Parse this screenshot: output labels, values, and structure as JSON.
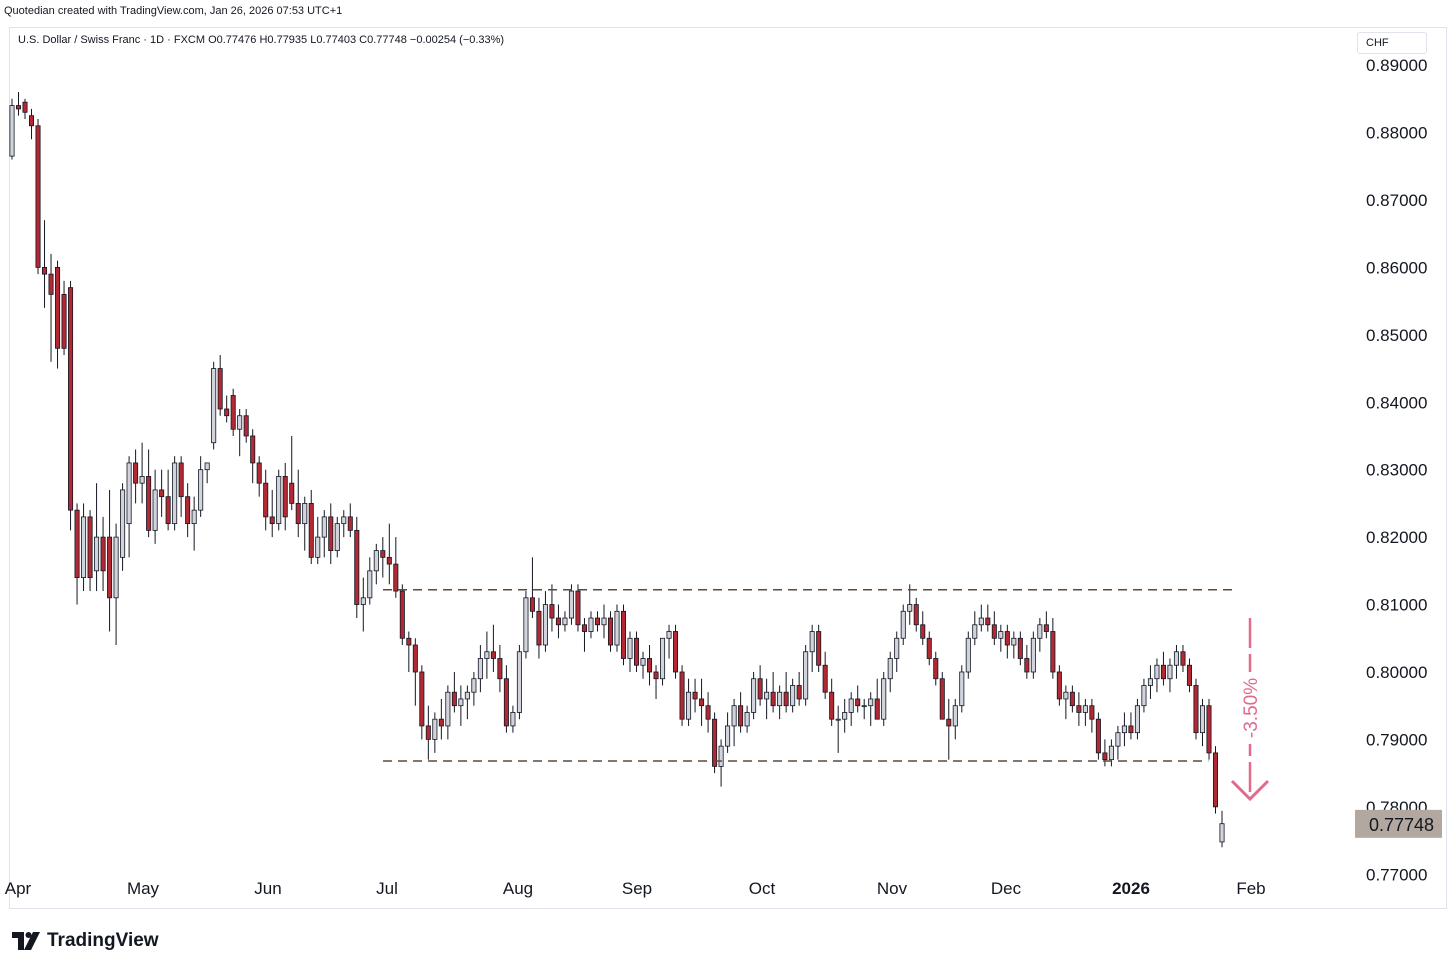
{
  "header": {
    "credit": "Quotedian created with TradingView.com, Jan 26, 2026 07:53 UTC+1",
    "legend": "U.S. Dollar / Swiss Franc · 1D · FXCM  O0.77476  H0.77935  L0.77403  C0.77748  −0.00254 (−0.33%)",
    "currency": "CHF"
  },
  "footer": {
    "brand": "TradingView",
    "logo_icon": "tradingview-logo-icon"
  },
  "colors": {
    "up": "#d1d4dc",
    "down": "#b22833",
    "outline": "#131722",
    "annotation": "#e06b8b",
    "price_tag": "#b2a89f"
  },
  "chart_data": {
    "type": "candlestick",
    "ylim": [
      0.765,
      0.8955
    ],
    "ytick_labels": [
      "0.89000",
      "0.88000",
      "0.87000",
      "0.86000",
      "0.85000",
      "0.84000",
      "0.83000",
      "0.82000",
      "0.81000",
      "0.80000",
      "0.79000",
      "0.78000",
      "0.77000"
    ],
    "ytick_values": [
      0.89,
      0.88,
      0.87,
      0.86,
      0.85,
      0.84,
      0.83,
      0.82,
      0.81,
      0.8,
      0.79,
      0.78,
      0.77
    ],
    "xtick_labels": [
      "Apr",
      "May",
      "Jun",
      "Jul",
      "Aug",
      "Sep",
      "Oct",
      "Nov",
      "Dec",
      "2026",
      "Feb"
    ],
    "last_price": "0.77748",
    "last_value": 0.77748,
    "annotation": "-3.50%",
    "range_lines": [
      {
        "from": "2025-06-30",
        "to": "2026-01-28",
        "value": 0.8122
      },
      {
        "from": "2025-06-30",
        "to": "2026-01-21",
        "value": 0.7868
      }
    ],
    "candles": [
      [
        0.8765,
        0.885,
        0.876,
        0.884
      ],
      [
        0.884,
        0.886,
        0.8825,
        0.8835
      ],
      [
        0.8845,
        0.885,
        0.882,
        0.883
      ],
      [
        0.8825,
        0.8835,
        0.879,
        0.881
      ],
      [
        0.881,
        0.882,
        0.859,
        0.86
      ],
      [
        0.86,
        0.867,
        0.854,
        0.859
      ],
      [
        0.859,
        0.862,
        0.846,
        0.856
      ],
      [
        0.86,
        0.861,
        0.845,
        0.848
      ],
      [
        0.856,
        0.858,
        0.847,
        0.848
      ],
      [
        0.857,
        0.858,
        0.821,
        0.824
      ],
      [
        0.824,
        0.825,
        0.81,
        0.814
      ],
      [
        0.814,
        0.825,
        0.812,
        0.823
      ],
      [
        0.823,
        0.824,
        0.812,
        0.814
      ],
      [
        0.815,
        0.828,
        0.812,
        0.82
      ],
      [
        0.82,
        0.823,
        0.812,
        0.815
      ],
      [
        0.82,
        0.827,
        0.806,
        0.811
      ],
      [
        0.811,
        0.822,
        0.804,
        0.82
      ],
      [
        0.817,
        0.828,
        0.815,
        0.827
      ],
      [
        0.822,
        0.832,
        0.817,
        0.831
      ],
      [
        0.831,
        0.833,
        0.825,
        0.828
      ],
      [
        0.828,
        0.834,
        0.825,
        0.829
      ],
      [
        0.829,
        0.833,
        0.82,
        0.821
      ],
      [
        0.821,
        0.83,
        0.819,
        0.827
      ],
      [
        0.827,
        0.83,
        0.823,
        0.826
      ],
      [
        0.826,
        0.83,
        0.821,
        0.822
      ],
      [
        0.822,
        0.832,
        0.821,
        0.831
      ],
      [
        0.831,
        0.832,
        0.823,
        0.826
      ],
      [
        0.826,
        0.828,
        0.82,
        0.822
      ],
      [
        0.822,
        0.826,
        0.818,
        0.824
      ],
      [
        0.824,
        0.832,
        0.823,
        0.83
      ],
      [
        0.83,
        0.831,
        0.828,
        0.831
      ],
      [
        0.834,
        0.846,
        0.833,
        0.845
      ],
      [
        0.845,
        0.847,
        0.838,
        0.839
      ],
      [
        0.839,
        0.841,
        0.837,
        0.838
      ],
      [
        0.841,
        0.842,
        0.835,
        0.836
      ],
      [
        0.836,
        0.839,
        0.832,
        0.838
      ],
      [
        0.838,
        0.839,
        0.834,
        0.835
      ],
      [
        0.835,
        0.836,
        0.828,
        0.831
      ],
      [
        0.831,
        0.832,
        0.826,
        0.828
      ],
      [
        0.828,
        0.83,
        0.821,
        0.823
      ],
      [
        0.823,
        0.827,
        0.82,
        0.822
      ],
      [
        0.822,
        0.83,
        0.821,
        0.829
      ],
      [
        0.829,
        0.831,
        0.821,
        0.823
      ],
      [
        0.828,
        0.835,
        0.824,
        0.825
      ],
      [
        0.825,
        0.83,
        0.82,
        0.822
      ],
      [
        0.822,
        0.826,
        0.818,
        0.825
      ],
      [
        0.825,
        0.827,
        0.816,
        0.817
      ],
      [
        0.817,
        0.823,
        0.816,
        0.82
      ],
      [
        0.82,
        0.824,
        0.817,
        0.823
      ],
      [
        0.823,
        0.825,
        0.816,
        0.818
      ],
      [
        0.818,
        0.823,
        0.817,
        0.822
      ],
      [
        0.822,
        0.824,
        0.82,
        0.823
      ],
      [
        0.823,
        0.825,
        0.82,
        0.821
      ],
      [
        0.821,
        0.823,
        0.808,
        0.81
      ],
      [
        0.81,
        0.814,
        0.806,
        0.811
      ],
      [
        0.811,
        0.817,
        0.81,
        0.815
      ],
      [
        0.815,
        0.819,
        0.813,
        0.818
      ],
      [
        0.818,
        0.82,
        0.814,
        0.817
      ],
      [
        0.817,
        0.822,
        0.813,
        0.816
      ],
      [
        0.816,
        0.82,
        0.811,
        0.812
      ],
      [
        0.812,
        0.813,
        0.804,
        0.805
      ],
      [
        0.805,
        0.806,
        0.8,
        0.804
      ],
      [
        0.804,
        0.805,
        0.795,
        0.8
      ],
      [
        0.8,
        0.801,
        0.79,
        0.792
      ],
      [
        0.792,
        0.795,
        0.787,
        0.79
      ],
      [
        0.79,
        0.794,
        0.788,
        0.793
      ],
      [
        0.793,
        0.796,
        0.79,
        0.792
      ],
      [
        0.792,
        0.798,
        0.79,
        0.797
      ],
      [
        0.797,
        0.8,
        0.794,
        0.795
      ],
      [
        0.795,
        0.798,
        0.792,
        0.796
      ],
      [
        0.796,
        0.798,
        0.793,
        0.797
      ],
      [
        0.797,
        0.8,
        0.795,
        0.799
      ],
      [
        0.799,
        0.804,
        0.797,
        0.802
      ],
      [
        0.802,
        0.806,
        0.799,
        0.803
      ],
      [
        0.803,
        0.807,
        0.8,
        0.802
      ],
      [
        0.802,
        0.804,
        0.797,
        0.799
      ],
      [
        0.799,
        0.801,
        0.791,
        0.792
      ],
      [
        0.792,
        0.795,
        0.791,
        0.794
      ],
      [
        0.794,
        0.804,
        0.793,
        0.803
      ],
      [
        0.803,
        0.812,
        0.802,
        0.811
      ],
      [
        0.811,
        0.817,
        0.808,
        0.809
      ],
      [
        0.809,
        0.811,
        0.802,
        0.804
      ],
      [
        0.804,
        0.812,
        0.803,
        0.81
      ],
      [
        0.81,
        0.813,
        0.806,
        0.808
      ],
      [
        0.808,
        0.81,
        0.805,
        0.807
      ],
      [
        0.807,
        0.809,
        0.806,
        0.808
      ],
      [
        0.808,
        0.813,
        0.807,
        0.812
      ],
      [
        0.812,
        0.813,
        0.806,
        0.807
      ],
      [
        0.807,
        0.808,
        0.803,
        0.806
      ],
      [
        0.806,
        0.809,
        0.805,
        0.808
      ],
      [
        0.808,
        0.809,
        0.806,
        0.807
      ],
      [
        0.807,
        0.81,
        0.805,
        0.808
      ],
      [
        0.808,
        0.809,
        0.803,
        0.804
      ],
      [
        0.804,
        0.81,
        0.803,
        0.809
      ],
      [
        0.809,
        0.81,
        0.801,
        0.802
      ],
      [
        0.802,
        0.806,
        0.8,
        0.805
      ],
      [
        0.805,
        0.806,
        0.8,
        0.801
      ],
      [
        0.801,
        0.803,
        0.799,
        0.802
      ],
      [
        0.802,
        0.804,
        0.798,
        0.8
      ],
      [
        0.8,
        0.801,
        0.796,
        0.799
      ],
      [
        0.799,
        0.805,
        0.798,
        0.805
      ],
      [
        0.805,
        0.807,
        0.802,
        0.806
      ],
      [
        0.806,
        0.807,
        0.799,
        0.8
      ],
      [
        0.8,
        0.801,
        0.792,
        0.793
      ],
      [
        0.793,
        0.799,
        0.792,
        0.797
      ],
      [
        0.797,
        0.799,
        0.794,
        0.796
      ],
      [
        0.796,
        0.799,
        0.792,
        0.795
      ],
      [
        0.795,
        0.797,
        0.791,
        0.793
      ],
      [
        0.793,
        0.794,
        0.785,
        0.786
      ],
      [
        0.786,
        0.79,
        0.783,
        0.789
      ],
      [
        0.789,
        0.794,
        0.788,
        0.792
      ],
      [
        0.792,
        0.796,
        0.789,
        0.795
      ],
      [
        0.795,
        0.797,
        0.791,
        0.792
      ],
      [
        0.792,
        0.795,
        0.791,
        0.794
      ],
      [
        0.794,
        0.8,
        0.793,
        0.799
      ],
      [
        0.799,
        0.801,
        0.795,
        0.796
      ],
      [
        0.796,
        0.799,
        0.793,
        0.797
      ],
      [
        0.797,
        0.8,
        0.794,
        0.795
      ],
      [
        0.795,
        0.798,
        0.793,
        0.797
      ],
      [
        0.797,
        0.8,
        0.794,
        0.795
      ],
      [
        0.795,
        0.799,
        0.794,
        0.798
      ],
      [
        0.798,
        0.8,
        0.795,
        0.796
      ],
      [
        0.796,
        0.804,
        0.795,
        0.803
      ],
      [
        0.803,
        0.807,
        0.8,
        0.806
      ],
      [
        0.806,
        0.807,
        0.8,
        0.801
      ],
      [
        0.801,
        0.803,
        0.796,
        0.797
      ],
      [
        0.797,
        0.799,
        0.792,
        0.793
      ],
      [
        0.793,
        0.795,
        0.788,
        0.793
      ],
      [
        0.793,
        0.796,
        0.791,
        0.794
      ],
      [
        0.794,
        0.797,
        0.792,
        0.796
      ],
      [
        0.796,
        0.798,
        0.794,
        0.795
      ],
      [
        0.795,
        0.796,
        0.793,
        0.795
      ],
      [
        0.795,
        0.797,
        0.792,
        0.796
      ],
      [
        0.796,
        0.799,
        0.793,
        0.793
      ],
      [
        0.793,
        0.8,
        0.792,
        0.799
      ],
      [
        0.799,
        0.803,
        0.797,
        0.802
      ],
      [
        0.802,
        0.806,
        0.8,
        0.805
      ],
      [
        0.805,
        0.81,
        0.804,
        0.809
      ],
      [
        0.809,
        0.813,
        0.807,
        0.81
      ],
      [
        0.81,
        0.811,
        0.806,
        0.807
      ],
      [
        0.807,
        0.809,
        0.804,
        0.805
      ],
      [
        0.805,
        0.806,
        0.801,
        0.802
      ],
      [
        0.802,
        0.803,
        0.798,
        0.799
      ],
      [
        0.799,
        0.8,
        0.793,
        0.793
      ],
      [
        0.793,
        0.796,
        0.787,
        0.792
      ],
      [
        0.792,
        0.796,
        0.79,
        0.795
      ],
      [
        0.795,
        0.801,
        0.794,
        0.8
      ],
      [
        0.8,
        0.806,
        0.799,
        0.805
      ],
      [
        0.805,
        0.809,
        0.804,
        0.807
      ],
      [
        0.807,
        0.81,
        0.806,
        0.808
      ],
      [
        0.808,
        0.81,
        0.806,
        0.807
      ],
      [
        0.807,
        0.809,
        0.804,
        0.805
      ],
      [
        0.805,
        0.807,
        0.803,
        0.806
      ],
      [
        0.806,
        0.807,
        0.802,
        0.804
      ],
      [
        0.804,
        0.806,
        0.802,
        0.805
      ],
      [
        0.805,
        0.806,
        0.801,
        0.802
      ],
      [
        0.802,
        0.804,
        0.799,
        0.8
      ],
      [
        0.8,
        0.806,
        0.799,
        0.805
      ],
      [
        0.805,
        0.808,
        0.803,
        0.807
      ],
      [
        0.807,
        0.809,
        0.805,
        0.806
      ],
      [
        0.806,
        0.808,
        0.799,
        0.8
      ],
      [
        0.8,
        0.801,
        0.795,
        0.796
      ],
      [
        0.796,
        0.798,
        0.793,
        0.797
      ],
      [
        0.797,
        0.798,
        0.794,
        0.795
      ],
      [
        0.795,
        0.797,
        0.792,
        0.794
      ],
      [
        0.794,
        0.796,
        0.792,
        0.795
      ],
      [
        0.795,
        0.796,
        0.791,
        0.793
      ],
      [
        0.793,
        0.794,
        0.787,
        0.788
      ],
      [
        0.788,
        0.79,
        0.786,
        0.787
      ],
      [
        0.787,
        0.79,
        0.786,
        0.789
      ],
      [
        0.789,
        0.792,
        0.787,
        0.791
      ],
      [
        0.791,
        0.794,
        0.789,
        0.792
      ],
      [
        0.792,
        0.794,
        0.79,
        0.791
      ],
      [
        0.791,
        0.796,
        0.79,
        0.795
      ],
      [
        0.795,
        0.799,
        0.794,
        0.798
      ],
      [
        0.798,
        0.801,
        0.796,
        0.799
      ],
      [
        0.799,
        0.802,
        0.797,
        0.801
      ],
      [
        0.801,
        0.803,
        0.798,
        0.799
      ],
      [
        0.799,
        0.802,
        0.797,
        0.801
      ],
      [
        0.801,
        0.804,
        0.799,
        0.803
      ],
      [
        0.803,
        0.804,
        0.8,
        0.801
      ],
      [
        0.801,
        0.802,
        0.797,
        0.798
      ],
      [
        0.798,
        0.799,
        0.79,
        0.791
      ],
      [
        0.791,
        0.796,
        0.789,
        0.795
      ],
      [
        0.795,
        0.796,
        0.787,
        0.788
      ],
      [
        0.788,
        0.789,
        0.779,
        0.78
      ],
      [
        0.7748,
        0.7794,
        0.774,
        0.7775
      ]
    ]
  }
}
